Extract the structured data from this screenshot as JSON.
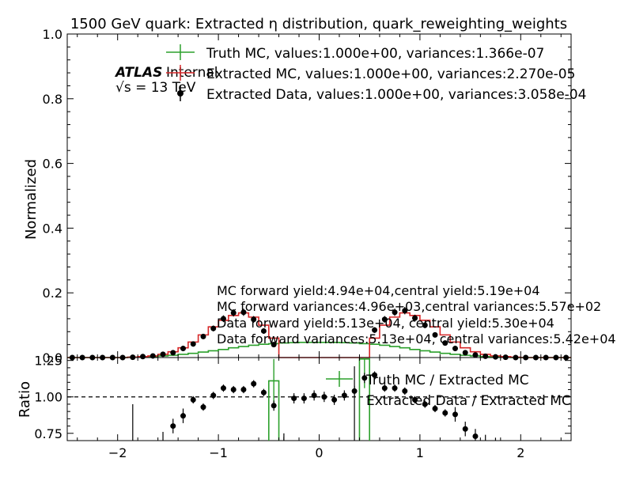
{
  "chart_data": {
    "type": "line",
    "title": "1500 GeV quark: Extracted η distribution, quark_reweighting_weights",
    "xlabel": "",
    "x_ticks": [
      "−2",
      "−1",
      "0",
      "1",
      "2"
    ],
    "xlim": [
      -2.5,
      2.5
    ],
    "main": {
      "ylabel": "Normalized",
      "ylim": [
        0,
        1.0
      ],
      "y_ticks": [
        "0.0",
        "0.2",
        "0.4",
        "0.6",
        "0.8",
        "1.0"
      ],
      "bin_edges": [
        -2.5,
        -2.4,
        -2.3,
        -2.2,
        -2.1,
        -2.0,
        -1.9,
        -1.8,
        -1.7,
        -1.6,
        -1.5,
        -1.4,
        -1.3,
        -1.2,
        -1.1,
        -1.0,
        -0.9,
        -0.8,
        -0.7,
        -0.6,
        -0.5,
        -0.4,
        -0.3,
        -0.2,
        -0.1,
        0.0,
        0.1,
        0.2,
        0.3,
        0.4,
        0.5,
        0.6,
        0.7,
        0.8,
        0.9,
        1.0,
        1.1,
        1.2,
        1.3,
        1.4,
        1.5,
        1.6,
        1.7,
        1.8,
        1.9,
        2.0,
        2.1,
        2.2,
        2.3,
        2.4,
        2.5
      ],
      "series": [
        {
          "name": "Truth MC, values:1.000e+00, variances:1.366e-07",
          "style": "step",
          "color": "#2ca02c",
          "values": [
            0,
            0,
            0,
            0,
            0,
            0,
            0.001,
            0.002,
            0.003,
            0.005,
            0.007,
            0.01,
            0.013,
            0.017,
            0.021,
            0.025,
            0.03,
            0.034,
            0.038,
            0.041,
            0.043,
            0.045,
            0.046,
            0.047,
            0.047,
            0.047,
            0.047,
            0.046,
            0.045,
            0.043,
            0.041,
            0.038,
            0.034,
            0.03,
            0.025,
            0.021,
            0.017,
            0.013,
            0.01,
            0.007,
            0.005,
            0.003,
            0.002,
            0.001,
            0,
            0,
            0,
            0,
            0,
            0
          ]
        },
        {
          "name": "Extracted MC, values:1.000e+00, variances:2.270e-05",
          "style": "step",
          "color": "#d62728",
          "values": [
            0,
            0,
            0,
            0,
            0,
            0,
            0.001,
            0.003,
            0.005,
            0.01,
            0.018,
            0.03,
            0.048,
            0.07,
            0.095,
            0.115,
            0.13,
            0.138,
            0.125,
            0.1,
            0.06,
            0,
            0,
            0,
            0,
            0,
            0,
            0,
            0,
            0,
            0.06,
            0.1,
            0.125,
            0.138,
            0.13,
            0.115,
            0.095,
            0.07,
            0.048,
            0.03,
            0.018,
            0.01,
            0.005,
            0.003,
            0.001,
            0,
            0,
            0,
            0,
            0
          ]
        },
        {
          "name": "Extracted Data, values:1.000e+00, variances:3.058e-04",
          "style": "points",
          "color": "#000000",
          "x": [
            -2.45,
            -2.35,
            -2.25,
            -2.15,
            -2.05,
            -1.95,
            -1.85,
            -1.75,
            -1.65,
            -1.55,
            -1.45,
            -1.35,
            -1.25,
            -1.15,
            -1.05,
            -0.95,
            -0.85,
            -0.75,
            -0.65,
            -0.55,
            -0.45,
            0.55,
            0.65,
            0.75,
            0.85,
            0.95,
            1.05,
            1.15,
            1.25,
            1.35,
            1.45,
            1.55,
            1.65,
            1.75,
            1.85,
            1.95,
            2.05,
            2.15,
            2.25,
            2.35,
            2.45
          ],
          "y": [
            0,
            0,
            0,
            0,
            0,
            0,
            0.001,
            0.003,
            0.005,
            0.01,
            0.015,
            0.028,
            0.042,
            0.065,
            0.09,
            0.12,
            0.138,
            0.14,
            0.118,
            0.082,
            0.04,
            0.085,
            0.118,
            0.14,
            0.145,
            0.122,
            0.1,
            0.07,
            0.045,
            0.028,
            0.015,
            0.008,
            0.004,
            0.002,
            0.001,
            0,
            0,
            0,
            0,
            0,
            0
          ]
        }
      ],
      "legend_position": "top-center",
      "experiment_label": "ATLAS",
      "experiment_status": "Internal",
      "energy_label": "√s = 13 TeV",
      "annotations": [
        "MC forward yield:4.94e+04,central yield:5.19e+04",
        "MC forward variances:4.96e+03,central variances:5.57e+02",
        "Data forward yield:5.13e+04, central yield:5.30e+04",
        "Data forward variances:5.13e+04, central variances:5.42e+04"
      ]
    },
    "ratio": {
      "ylabel": "Ratio",
      "ylim": [
        0.7,
        1.27
      ],
      "y_ticks": [
        "0.75",
        "1.00",
        "1.25"
      ],
      "reference_line": 1.0,
      "series": [
        {
          "name": "Truth MC / Extracted MC",
          "style": "step",
          "color": "#2ca02c",
          "bin_edges": [
            -0.5,
            -0.4,
            0.4,
            0.5
          ],
          "values": [
            1.11,
            0.7,
            1.26
          ]
        },
        {
          "name": "Extracted Data / Extracted MC",
          "style": "points",
          "color": "#000000",
          "x": [
            -1.45,
            -1.35,
            -1.25,
            -1.15,
            -1.05,
            -0.95,
            -0.85,
            -0.75,
            -0.65,
            -0.55,
            -0.45,
            -0.35,
            -0.25,
            -0.15,
            -0.05,
            0.05,
            0.15,
            0.25,
            0.35,
            0.45,
            0.55,
            0.65,
            0.75,
            0.85,
            0.95,
            1.05,
            1.15,
            1.25,
            1.35,
            1.45,
            1.55
          ],
          "y": [
            0.8,
            0.87,
            0.98,
            0.93,
            1.01,
            1.06,
            1.05,
            1.05,
            1.09,
            1.03,
            0.94,
            0.69,
            0.99,
            0.99,
            1.01,
            1.0,
            0.98,
            1.01,
            1.04,
            1.13,
            1.15,
            1.06,
            1.06,
            1.04,
            0.98,
            0.95,
            0.92,
            0.89,
            0.88,
            0.78,
            0.73
          ]
        }
      ]
    }
  }
}
